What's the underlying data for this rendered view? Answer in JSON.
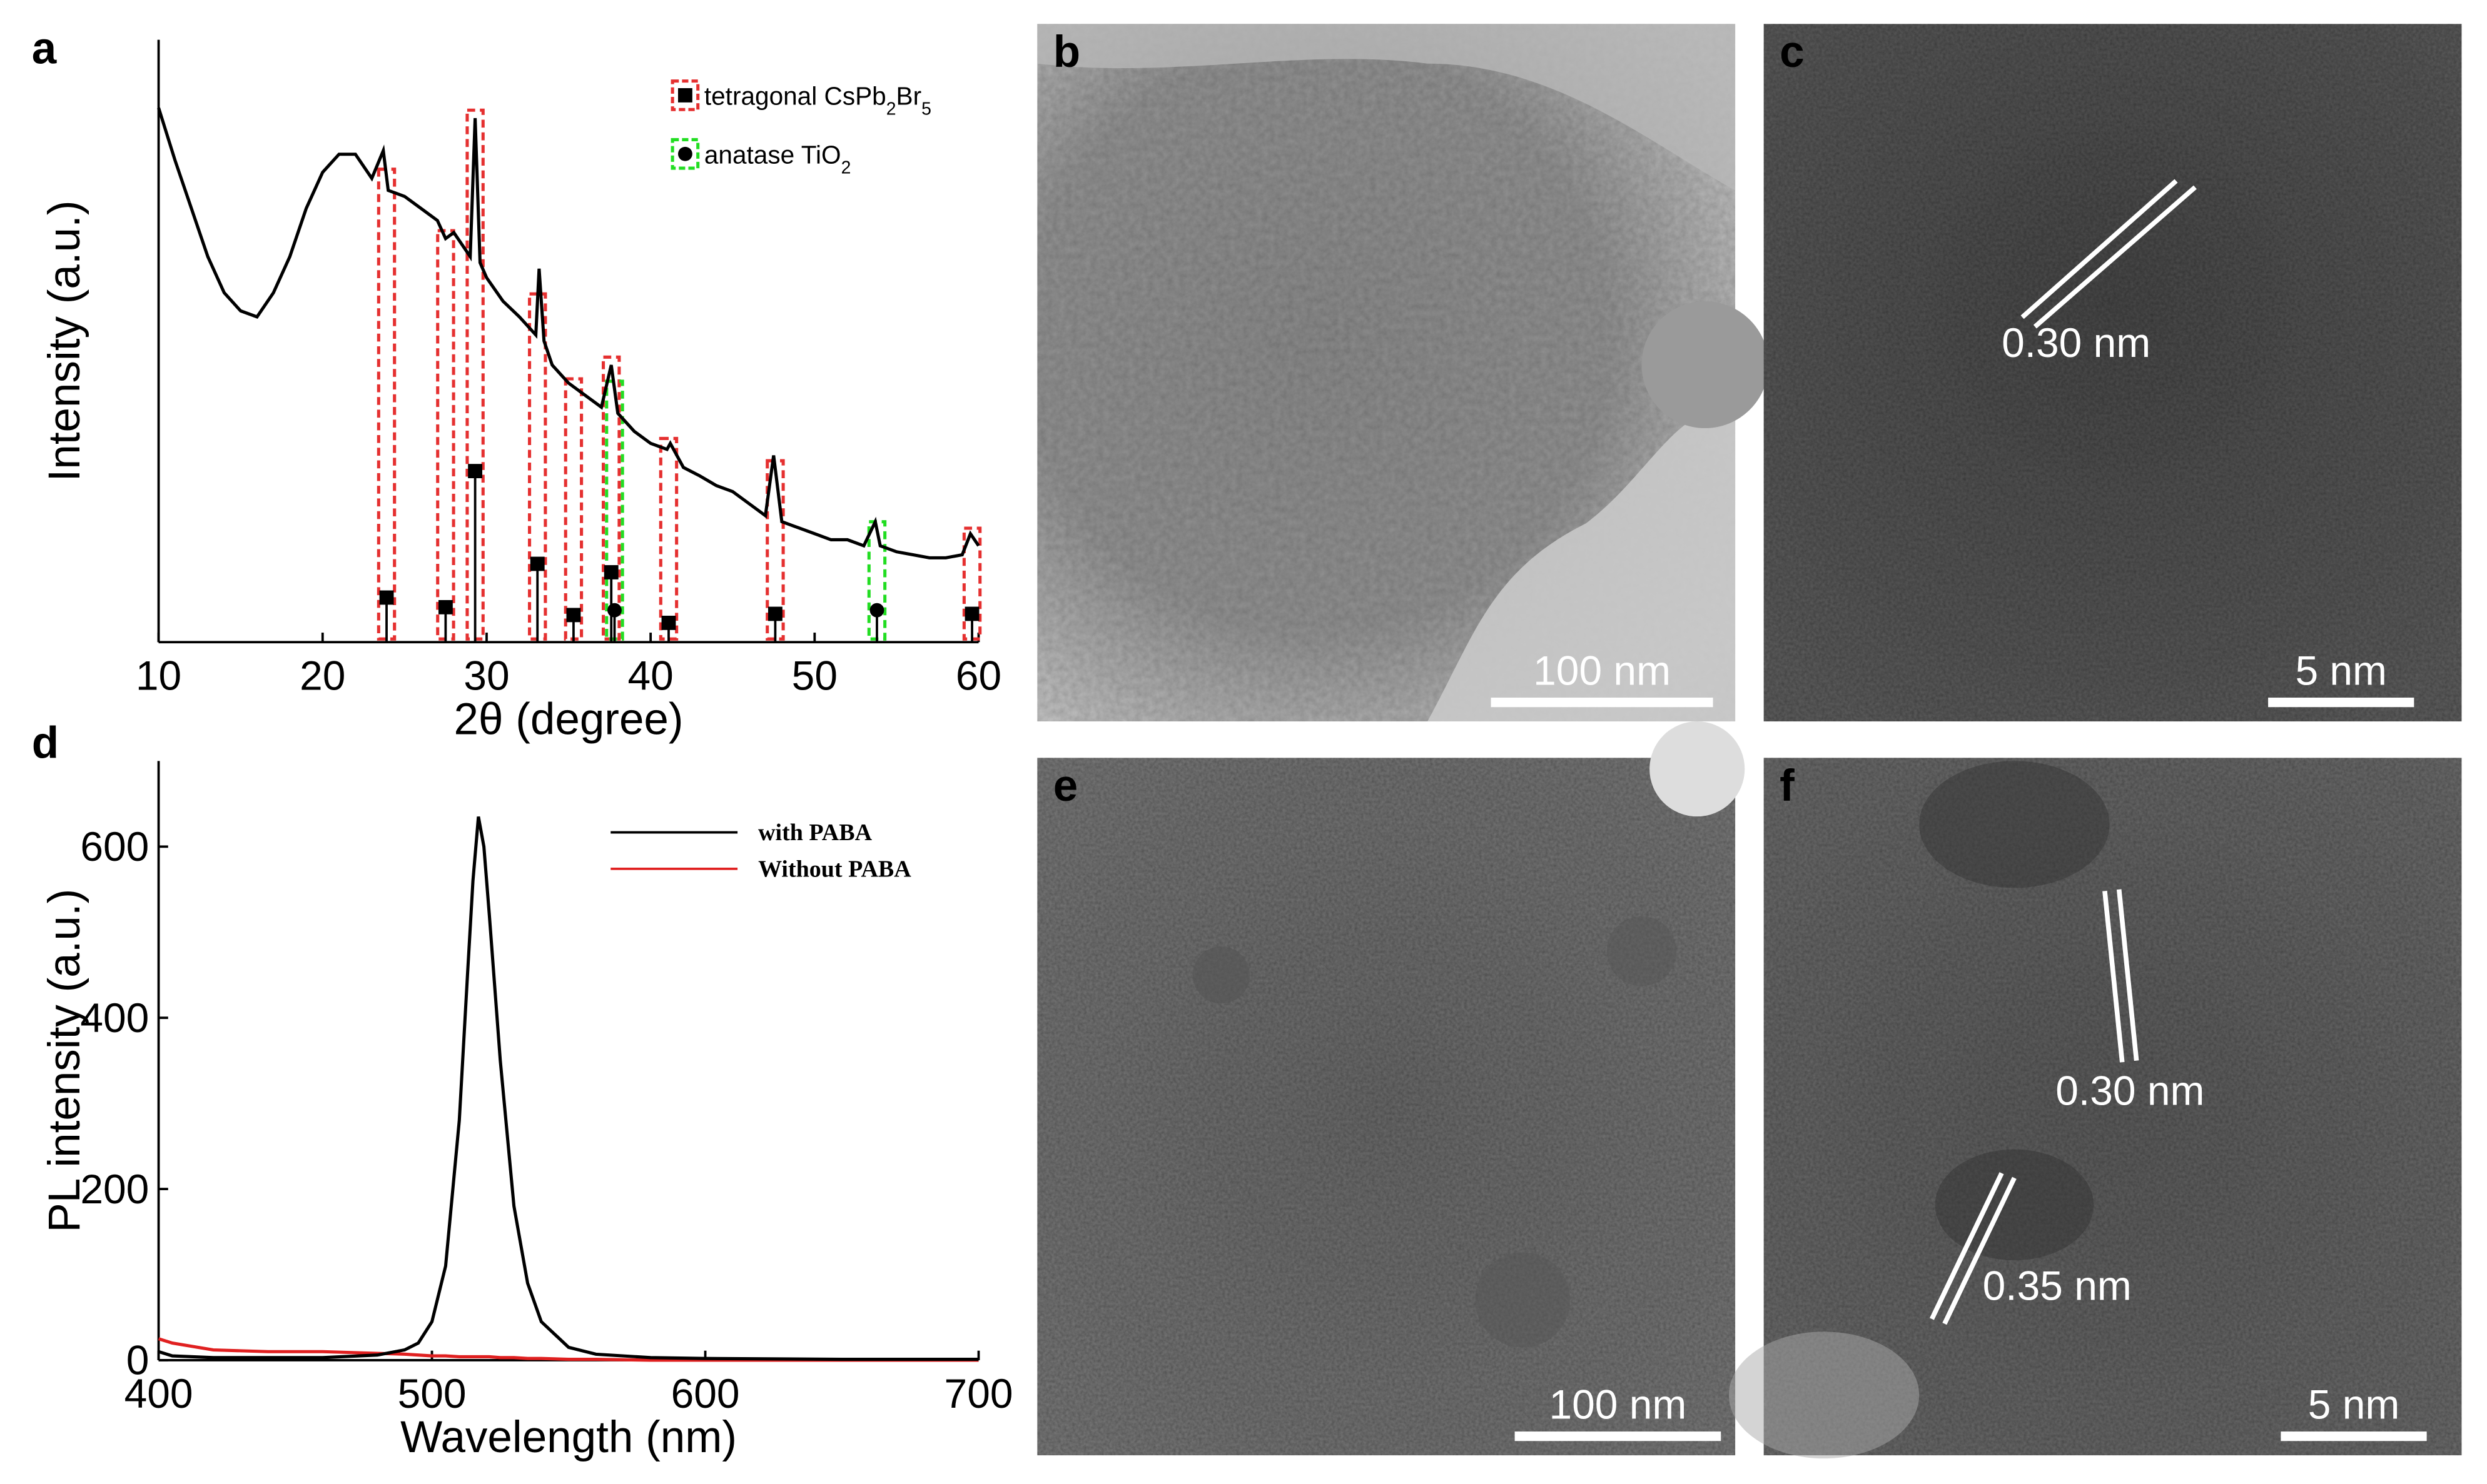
{
  "chart_data": [
    {
      "type": "line",
      "panel_label": "a",
      "xlabel": "2θ (degree)",
      "ylabel": "Intensity (a.u.)",
      "xlim": [
        10,
        60
      ],
      "xticks": [
        10,
        20,
        30,
        40,
        50,
        60
      ],
      "ylim": [
        0,
        100
      ],
      "color": "#000000",
      "x": [
        10,
        11,
        12,
        13,
        14,
        15,
        16,
        17,
        18,
        19,
        20,
        21,
        22,
        23,
        23.7,
        24,
        25,
        26,
        27,
        27.5,
        28,
        29,
        29.3,
        29.6,
        30,
        31,
        32,
        33,
        33.2,
        33.5,
        34,
        35,
        36,
        37,
        37.6,
        38,
        39,
        40,
        41,
        41.2,
        42,
        43,
        44,
        45,
        46,
        47,
        47.5,
        48,
        49,
        50,
        51,
        52,
        53,
        53.7,
        54,
        55,
        56,
        57,
        58,
        59,
        59.5,
        60
      ],
      "values": [
        88.7,
        80,
        72,
        64,
        58,
        55,
        54,
        58,
        64,
        72,
        78,
        81,
        81,
        77,
        81.6,
        75,
        74,
        72,
        70,
        67,
        68,
        64,
        87,
        63,
        60.5,
        56.6,
        54,
        51,
        62,
        50,
        46,
        43,
        41,
        39,
        46,
        38,
        35,
        33,
        32,
        33,
        29,
        27.6,
        26,
        25,
        23,
        21,
        31,
        20,
        19,
        18,
        17,
        17,
        16,
        20,
        16,
        15,
        14.5,
        14,
        14,
        14.5,
        18,
        16
      ],
      "references": [
        {
          "name": "tetragonal CsPb2Br5",
          "color": "#e53030",
          "marker": "square",
          "x": [
            23.9,
            27.5,
            29.3,
            33.1,
            35.3,
            37.6,
            41.1,
            47.6,
            59.6
          ],
          "values": [
            7.4,
            5.8,
            28.4,
            13,
            4.5,
            11.6,
            3.2,
            4.7,
            4.7
          ]
        },
        {
          "name": "anatase TiO2",
          "color": "#22dd22",
          "marker": "circle",
          "x": [
            37.8,
            53.8
          ],
          "values": [
            5.3,
            5.3
          ]
        }
      ]
    },
    {
      "type": "line",
      "panel_label": "d",
      "xlabel": "Wavelength (nm)",
      "ylabel": "PL intensity (a.u.)",
      "xlim": [
        400,
        700
      ],
      "xticks": [
        400,
        500,
        600,
        700
      ],
      "ylim": [
        0,
        700
      ],
      "yticks": [
        0,
        200,
        400,
        600
      ],
      "x": [
        400,
        405,
        420,
        440,
        460,
        480,
        490,
        495,
        500,
        505,
        510,
        513,
        515,
        517,
        519,
        521,
        525,
        530,
        535,
        540,
        550,
        560,
        580,
        600,
        650,
        700
      ],
      "series": [
        {
          "name": "with PABA",
          "color": "#000000",
          "values": [
            10,
            5,
            3,
            3,
            3,
            6,
            12,
            20,
            45,
            110,
            280,
            450,
            560,
            635,
            600,
            520,
            350,
            180,
            90,
            45,
            15,
            7,
            3,
            2,
            1,
            1
          ]
        },
        {
          "name": "Without PABA",
          "color": "#e02020",
          "values": [
            25,
            20,
            12,
            10,
            10,
            8,
            7,
            6,
            5,
            5,
            4,
            4,
            4,
            4,
            4,
            4,
            3,
            3,
            2,
            2,
            1,
            1,
            0,
            0,
            0,
            0
          ]
        }
      ]
    }
  ],
  "images": [
    {
      "panel_label": "b",
      "scale_bar": "100 nm",
      "annotations": []
    },
    {
      "panel_label": "c",
      "scale_bar": "5 nm",
      "annotations": [
        "0.30 nm"
      ]
    },
    {
      "panel_label": "e",
      "scale_bar": "100 nm",
      "annotations": []
    },
    {
      "panel_label": "f",
      "scale_bar": "5 nm",
      "annotations": [
        "0.30 nm",
        "0.35 nm"
      ]
    }
  ]
}
